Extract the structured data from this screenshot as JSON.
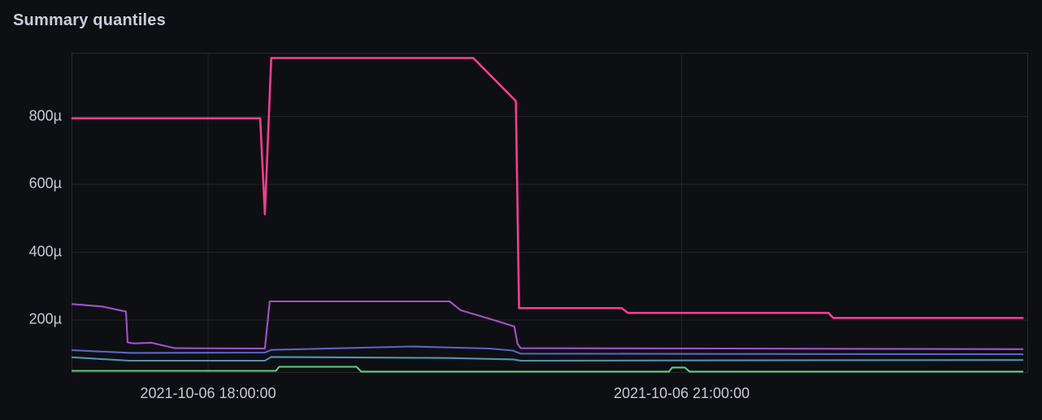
{
  "panel": {
    "title": "Summary quantiles"
  },
  "colors": {
    "background": "#0e0f13",
    "grid": "rgba(255,255,255,0.08)",
    "plot_border": "rgba(255,255,255,0.11)",
    "tick_text": "#c7cad3",
    "title_text": "#ccccdc"
  },
  "chart_data": {
    "type": "line",
    "title": "Summary quantiles",
    "legend": false,
    "grid": true,
    "x_axis": {
      "unit": "time",
      "range_hours": [
        17.14,
        23.19
      ],
      "ticks": [
        {
          "value": 18,
          "label": "2021-10-06 18:00:00"
        },
        {
          "value": 21,
          "label": "2021-10-06 21:00:00"
        }
      ]
    },
    "y_axis": {
      "unit": "microseconds",
      "range_us": [
        46.5,
        986
      ],
      "ticks": [
        {
          "value": 200,
          "label": "200µ"
        },
        {
          "value": 400,
          "label": "400µ"
        },
        {
          "value": 600,
          "label": "600µ"
        },
        {
          "value": 800,
          "label": "800µ"
        }
      ]
    },
    "series": [
      {
        "name": "green",
        "color": "#5fce7f",
        "width": 2.1,
        "points": [
          [
            17.14,
            50
          ],
          [
            18.43,
            50
          ],
          [
            18.45,
            62
          ],
          [
            18.94,
            62
          ],
          [
            18.97,
            48
          ],
          [
            20.92,
            48
          ],
          [
            20.94,
            60
          ],
          [
            21.02,
            60
          ],
          [
            21.05,
            48
          ],
          [
            23.16,
            48
          ]
        ]
      },
      {
        "name": "teal",
        "color": "#4e94b0",
        "width": 2.1,
        "points": [
          [
            17.14,
            90
          ],
          [
            17.5,
            80
          ],
          [
            18.36,
            80
          ],
          [
            18.4,
            91
          ],
          [
            19.52,
            88
          ],
          [
            19.93,
            84
          ],
          [
            19.98,
            80
          ],
          [
            21.3,
            81
          ],
          [
            23.16,
            82
          ]
        ]
      },
      {
        "name": "blue",
        "color": "#5c64c4",
        "width": 2.1,
        "points": [
          [
            17.14,
            111
          ],
          [
            17.51,
            103
          ],
          [
            18.36,
            104
          ],
          [
            18.4,
            112
          ],
          [
            19.29,
            122
          ],
          [
            19.78,
            116
          ],
          [
            19.93,
            110
          ],
          [
            19.98,
            101
          ],
          [
            21.32,
            100
          ],
          [
            23.16,
            99
          ]
        ]
      },
      {
        "name": "purple",
        "color": "#a352cc",
        "width": 2.1,
        "points": [
          [
            17.14,
            247
          ],
          [
            17.33,
            240
          ],
          [
            17.45,
            228
          ],
          [
            17.48,
            225
          ],
          [
            17.49,
            134
          ],
          [
            17.53,
            131
          ],
          [
            17.64,
            133
          ],
          [
            17.79,
            117
          ],
          [
            18.36,
            116
          ],
          [
            18.39,
            255
          ],
          [
            19.53,
            255
          ],
          [
            19.6,
            229
          ],
          [
            19.81,
            200
          ],
          [
            19.94,
            181
          ],
          [
            19.96,
            130
          ],
          [
            19.98,
            117
          ],
          [
            21.3,
            116
          ],
          [
            23.16,
            114
          ]
        ]
      },
      {
        "name": "magenta",
        "color": "#f0408e",
        "width": 2.6,
        "points": [
          [
            17.14,
            795
          ],
          [
            18.33,
            795
          ],
          [
            18.36,
            512
          ],
          [
            18.4,
            973
          ],
          [
            19.68,
            973
          ],
          [
            19.95,
            846
          ],
          [
            19.97,
            235
          ],
          [
            20.62,
            235
          ],
          [
            20.66,
            221
          ],
          [
            21.93,
            221
          ],
          [
            21.96,
            206
          ],
          [
            23.16,
            206
          ]
        ]
      }
    ]
  }
}
